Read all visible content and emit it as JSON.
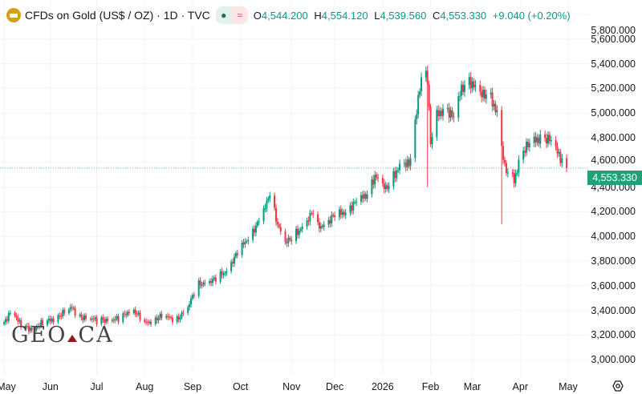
{
  "header": {
    "title": "CFDs on Gold (US$ / OZ) · 1D · TVC",
    "o_label": "O",
    "o": "4,544.200",
    "h_label": "H",
    "h": "4,554.120",
    "l_label": "L",
    "l": "4,539.560",
    "c_label": "C",
    "c": "4,553.330",
    "change": "+9.040 (+0.20%)",
    "status_dot": "●",
    "status_wave": "≈"
  },
  "watermark": "GEO.CA",
  "colors": {
    "up": "#089981",
    "down": "#f23645",
    "grid": "#f0f3fa",
    "tag": "#22a07a"
  },
  "chart_data": {
    "type": "candlestick",
    "title": "CFDs on Gold (US$ / OZ) · 1D · TVC",
    "current_price": 4553.33,
    "current_price_label": "4,553.330",
    "ylim": [
      2900,
      5950
    ],
    "y_ticks": [
      3000,
      3200,
      3400,
      3600,
      3800,
      4000,
      4200,
      4400,
      4600,
      4800,
      5000,
      5200,
      5400,
      5600,
      5800
    ],
    "y_tick_labels": [
      "3,000.000",
      "3,200.000",
      "3,400.000",
      "3,600.000",
      "3,800.000",
      "4,000.000",
      "4,200.000",
      "4,400.000",
      "4,600.000",
      "4,800.000",
      "5,000.000",
      "5,200.000",
      "5,400.000",
      "5,600.000",
      "5,800.000"
    ],
    "x_ticks": [
      {
        "day": 0,
        "label": "May"
      },
      {
        "day": 30,
        "label": "Jun"
      },
      {
        "day": 60,
        "label": "Jul"
      },
      {
        "day": 91,
        "label": "Aug"
      },
      {
        "day": 122,
        "label": "Sep"
      },
      {
        "day": 153,
        "label": "Oct"
      },
      {
        "day": 186,
        "label": "Nov"
      },
      {
        "day": 214,
        "label": "Dec"
      },
      {
        "day": 245,
        "label": "2026"
      },
      {
        "day": 276,
        "label": "Feb"
      },
      {
        "day": 303,
        "label": "Mar"
      },
      {
        "day": 334,
        "label": "Apr"
      },
      {
        "day": 365,
        "label": "May"
      }
    ],
    "close_path": [
      [
        0,
        3290
      ],
      [
        5,
        3420
      ],
      [
        10,
        3290
      ],
      [
        16,
        3250
      ],
      [
        30,
        3320
      ],
      [
        44,
        3420
      ],
      [
        49,
        3350
      ],
      [
        60,
        3320
      ],
      [
        75,
        3330
      ],
      [
        83,
        3420
      ],
      [
        91,
        3290
      ],
      [
        101,
        3350
      ],
      [
        112,
        3330
      ],
      [
        119,
        3420
      ],
      [
        125,
        3610
      ],
      [
        135,
        3640
      ],
      [
        143,
        3710
      ],
      [
        153,
        3900
      ],
      [
        164,
        4100
      ],
      [
        169,
        4230
      ],
      [
        172,
        4360
      ],
      [
        177,
        4100
      ],
      [
        182,
        3940
      ],
      [
        187,
        4000
      ],
      [
        195,
        4100
      ],
      [
        200,
        4200
      ],
      [
        202,
        4070
      ],
      [
        208,
        4100
      ],
      [
        213,
        4160
      ],
      [
        221,
        4200
      ],
      [
        226,
        4260
      ],
      [
        234,
        4330
      ],
      [
        240,
        4490
      ],
      [
        247,
        4380
      ],
      [
        252,
        4490
      ],
      [
        257,
        4590
      ],
      [
        262,
        4580
      ],
      [
        265,
        4780
      ],
      [
        268,
        5140
      ],
      [
        272,
        5400
      ],
      [
        274,
        5270
      ],
      [
        276,
        4750
      ],
      [
        280,
        4980
      ],
      [
        286,
        5050
      ],
      [
        291,
        4950
      ],
      [
        296,
        5200
      ],
      [
        301,
        5270
      ],
      [
        305,
        5200
      ],
      [
        309,
        5140
      ],
      [
        314,
        5170
      ],
      [
        319,
        4990
      ],
      [
        324,
        4550
      ],
      [
        330,
        4460
      ],
      [
        335,
        4680
      ],
      [
        340,
        4750
      ],
      [
        348,
        4810
      ],
      [
        353,
        4780
      ],
      [
        358,
        4680
      ],
      [
        361,
        4620
      ],
      [
        364,
        4553.33
      ]
    ]
  }
}
